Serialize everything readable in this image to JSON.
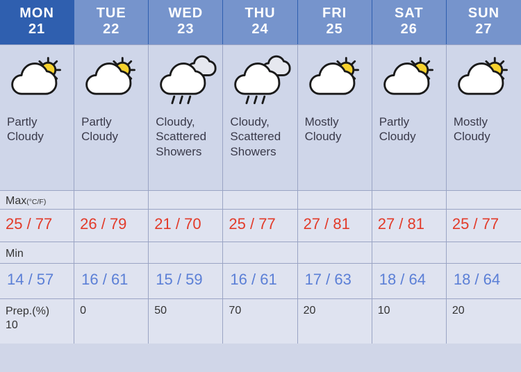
{
  "colors": {
    "header_bg_today": "#2f5faf",
    "header_bg": "#7694cc",
    "icon_bg": "#cfd6e9",
    "body_bg": "#dfe3f0",
    "grid_line": "#9aa4c4",
    "max_color": "#e23b2a",
    "min_color": "#5b7fd6",
    "text_color": "#3a3a4a"
  },
  "labels": {
    "max": "Max",
    "max_unit": "(°C/F)",
    "min": "Min",
    "prep": "Prep.(%)"
  },
  "days": [
    {
      "dow": "MON",
      "dom": "21",
      "icon": "partly-cloudy",
      "condition": "Partly Cloudy",
      "max": "25 / 77",
      "min": "14 / 57",
      "prep": "10",
      "today": true
    },
    {
      "dow": "TUE",
      "dom": "22",
      "icon": "partly-cloudy",
      "condition": "Partly Cloudy",
      "max": "26 / 79",
      "min": "16 / 61",
      "prep": "0",
      "today": false
    },
    {
      "dow": "WED",
      "dom": "23",
      "icon": "showers",
      "condition": "Cloudy, Scattered Showers",
      "max": "21 / 70",
      "min": "15 / 59",
      "prep": "50",
      "today": false
    },
    {
      "dow": "THU",
      "dom": "24",
      "icon": "showers",
      "condition": "Cloudy, Scattered Showers",
      "max": "25 / 77",
      "min": "16 / 61",
      "prep": "70",
      "today": false
    },
    {
      "dow": "FRI",
      "dom": "25",
      "icon": "mostly-cloudy",
      "condition": "Mostly Cloudy",
      "max": "27 / 81",
      "min": "17 / 63",
      "prep": "20",
      "today": false
    },
    {
      "dow": "SAT",
      "dom": "26",
      "icon": "partly-cloudy",
      "condition": "Partly Cloudy",
      "max": "27 / 81",
      "min": "18 / 64",
      "prep": "10",
      "today": false
    },
    {
      "dow": "SUN",
      "dom": "27",
      "icon": "mostly-cloudy",
      "condition": "Mostly Cloudy",
      "max": "25 / 77",
      "min": "18 / 64",
      "prep": "20",
      "today": false
    }
  ],
  "icons": {
    "sun_fill": "#f7d22e",
    "sun_stroke": "#1a1a1a",
    "cloud_fill": "#ffffff",
    "cloud_stroke": "#1a1a1a",
    "small_cloud_fill": "#e6e8ef",
    "rain_stroke": "#1a1a1a",
    "stroke_width": 3
  }
}
